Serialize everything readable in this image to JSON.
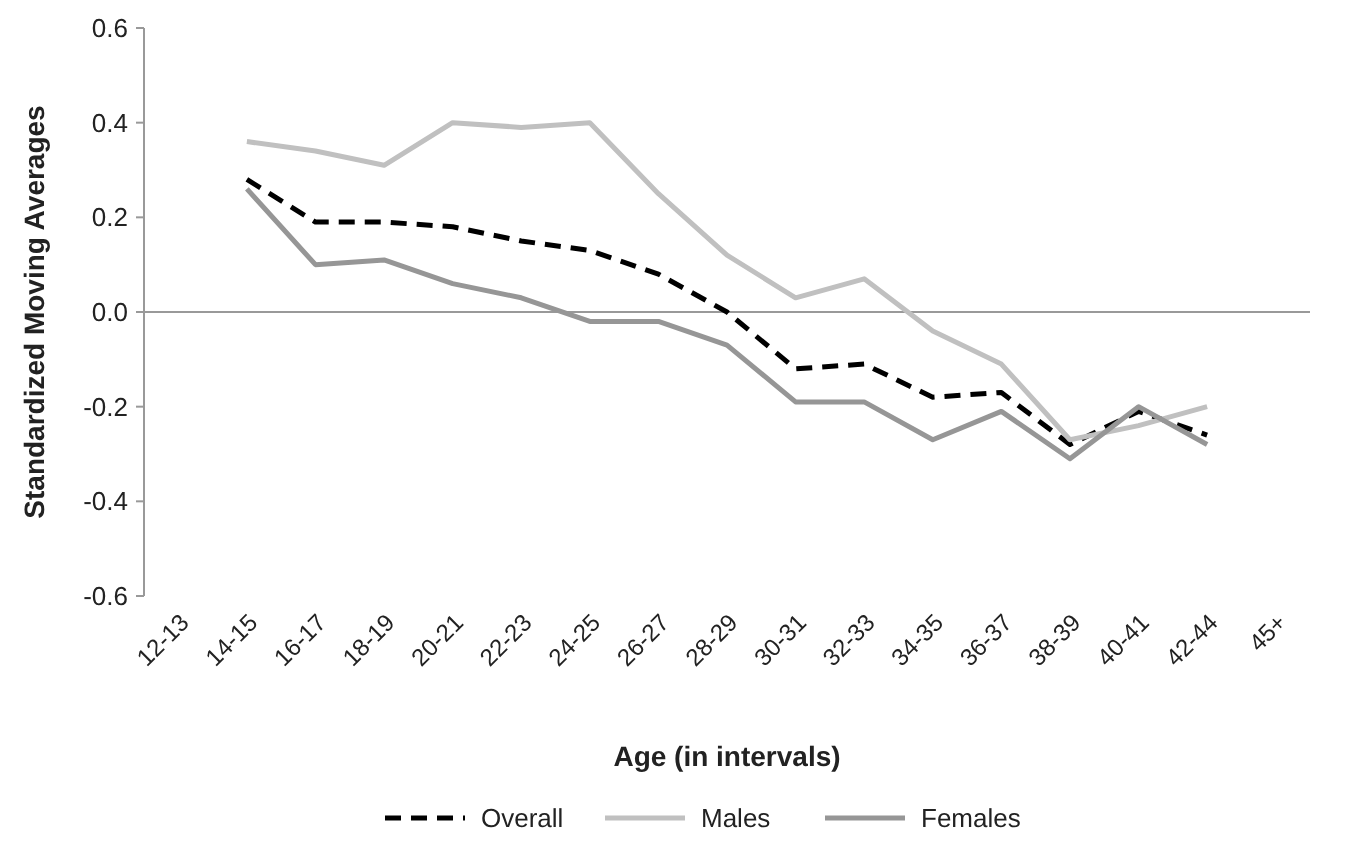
{
  "chart_data": {
    "type": "line",
    "xlabel": "Age (in intervals)",
    "ylabel": "Standardized Moving Averages",
    "categories": [
      "12-13",
      "14-15",
      "16-17",
      "18-19",
      "20-21",
      "22-23",
      "24-25",
      "26-27",
      "28-29",
      "30-31",
      "32-33",
      "34-35",
      "36-37",
      "38-39",
      "40-41",
      "42-44",
      "45+"
    ],
    "series": [
      {
        "name": "Overall",
        "color": "#000000",
        "line_style": "dashed",
        "values": [
          null,
          0.28,
          0.19,
          0.19,
          0.18,
          0.15,
          0.13,
          0.08,
          0.0,
          -0.12,
          -0.11,
          -0.18,
          -0.17,
          -0.28,
          -0.21,
          -0.26,
          null
        ]
      },
      {
        "name": "Males",
        "color": "#c0c0c0",
        "line_style": "solid",
        "values": [
          null,
          0.36,
          0.34,
          0.31,
          0.4,
          0.39,
          0.4,
          0.25,
          0.12,
          0.03,
          0.07,
          -0.04,
          -0.11,
          -0.27,
          -0.24,
          -0.2,
          null
        ]
      },
      {
        "name": "Females",
        "color": "#969696",
        "line_style": "solid",
        "values": [
          null,
          0.26,
          0.1,
          0.11,
          0.06,
          0.03,
          -0.02,
          -0.02,
          -0.07,
          -0.19,
          -0.19,
          -0.27,
          -0.21,
          -0.31,
          -0.2,
          -0.28,
          null
        ]
      }
    ],
    "ylim": [
      -0.6,
      0.6
    ],
    "yticks": [
      {
        "value": -0.6,
        "label": "-0.6"
      },
      {
        "value": -0.4,
        "label": "-0.4"
      },
      {
        "value": -0.2,
        "label": "-0.2"
      },
      {
        "value": 0,
        "label": "0.0"
      },
      {
        "value": 0.2,
        "label": "0.2"
      },
      {
        "value": 0.4,
        "label": "0.4"
      },
      {
        "value": 0.6,
        "label": "0.6"
      }
    ],
    "ref_lines": [
      {
        "axis": "y",
        "value": 0,
        "color": "#999999"
      }
    ],
    "legend": "bottom",
    "marker": "none"
  }
}
